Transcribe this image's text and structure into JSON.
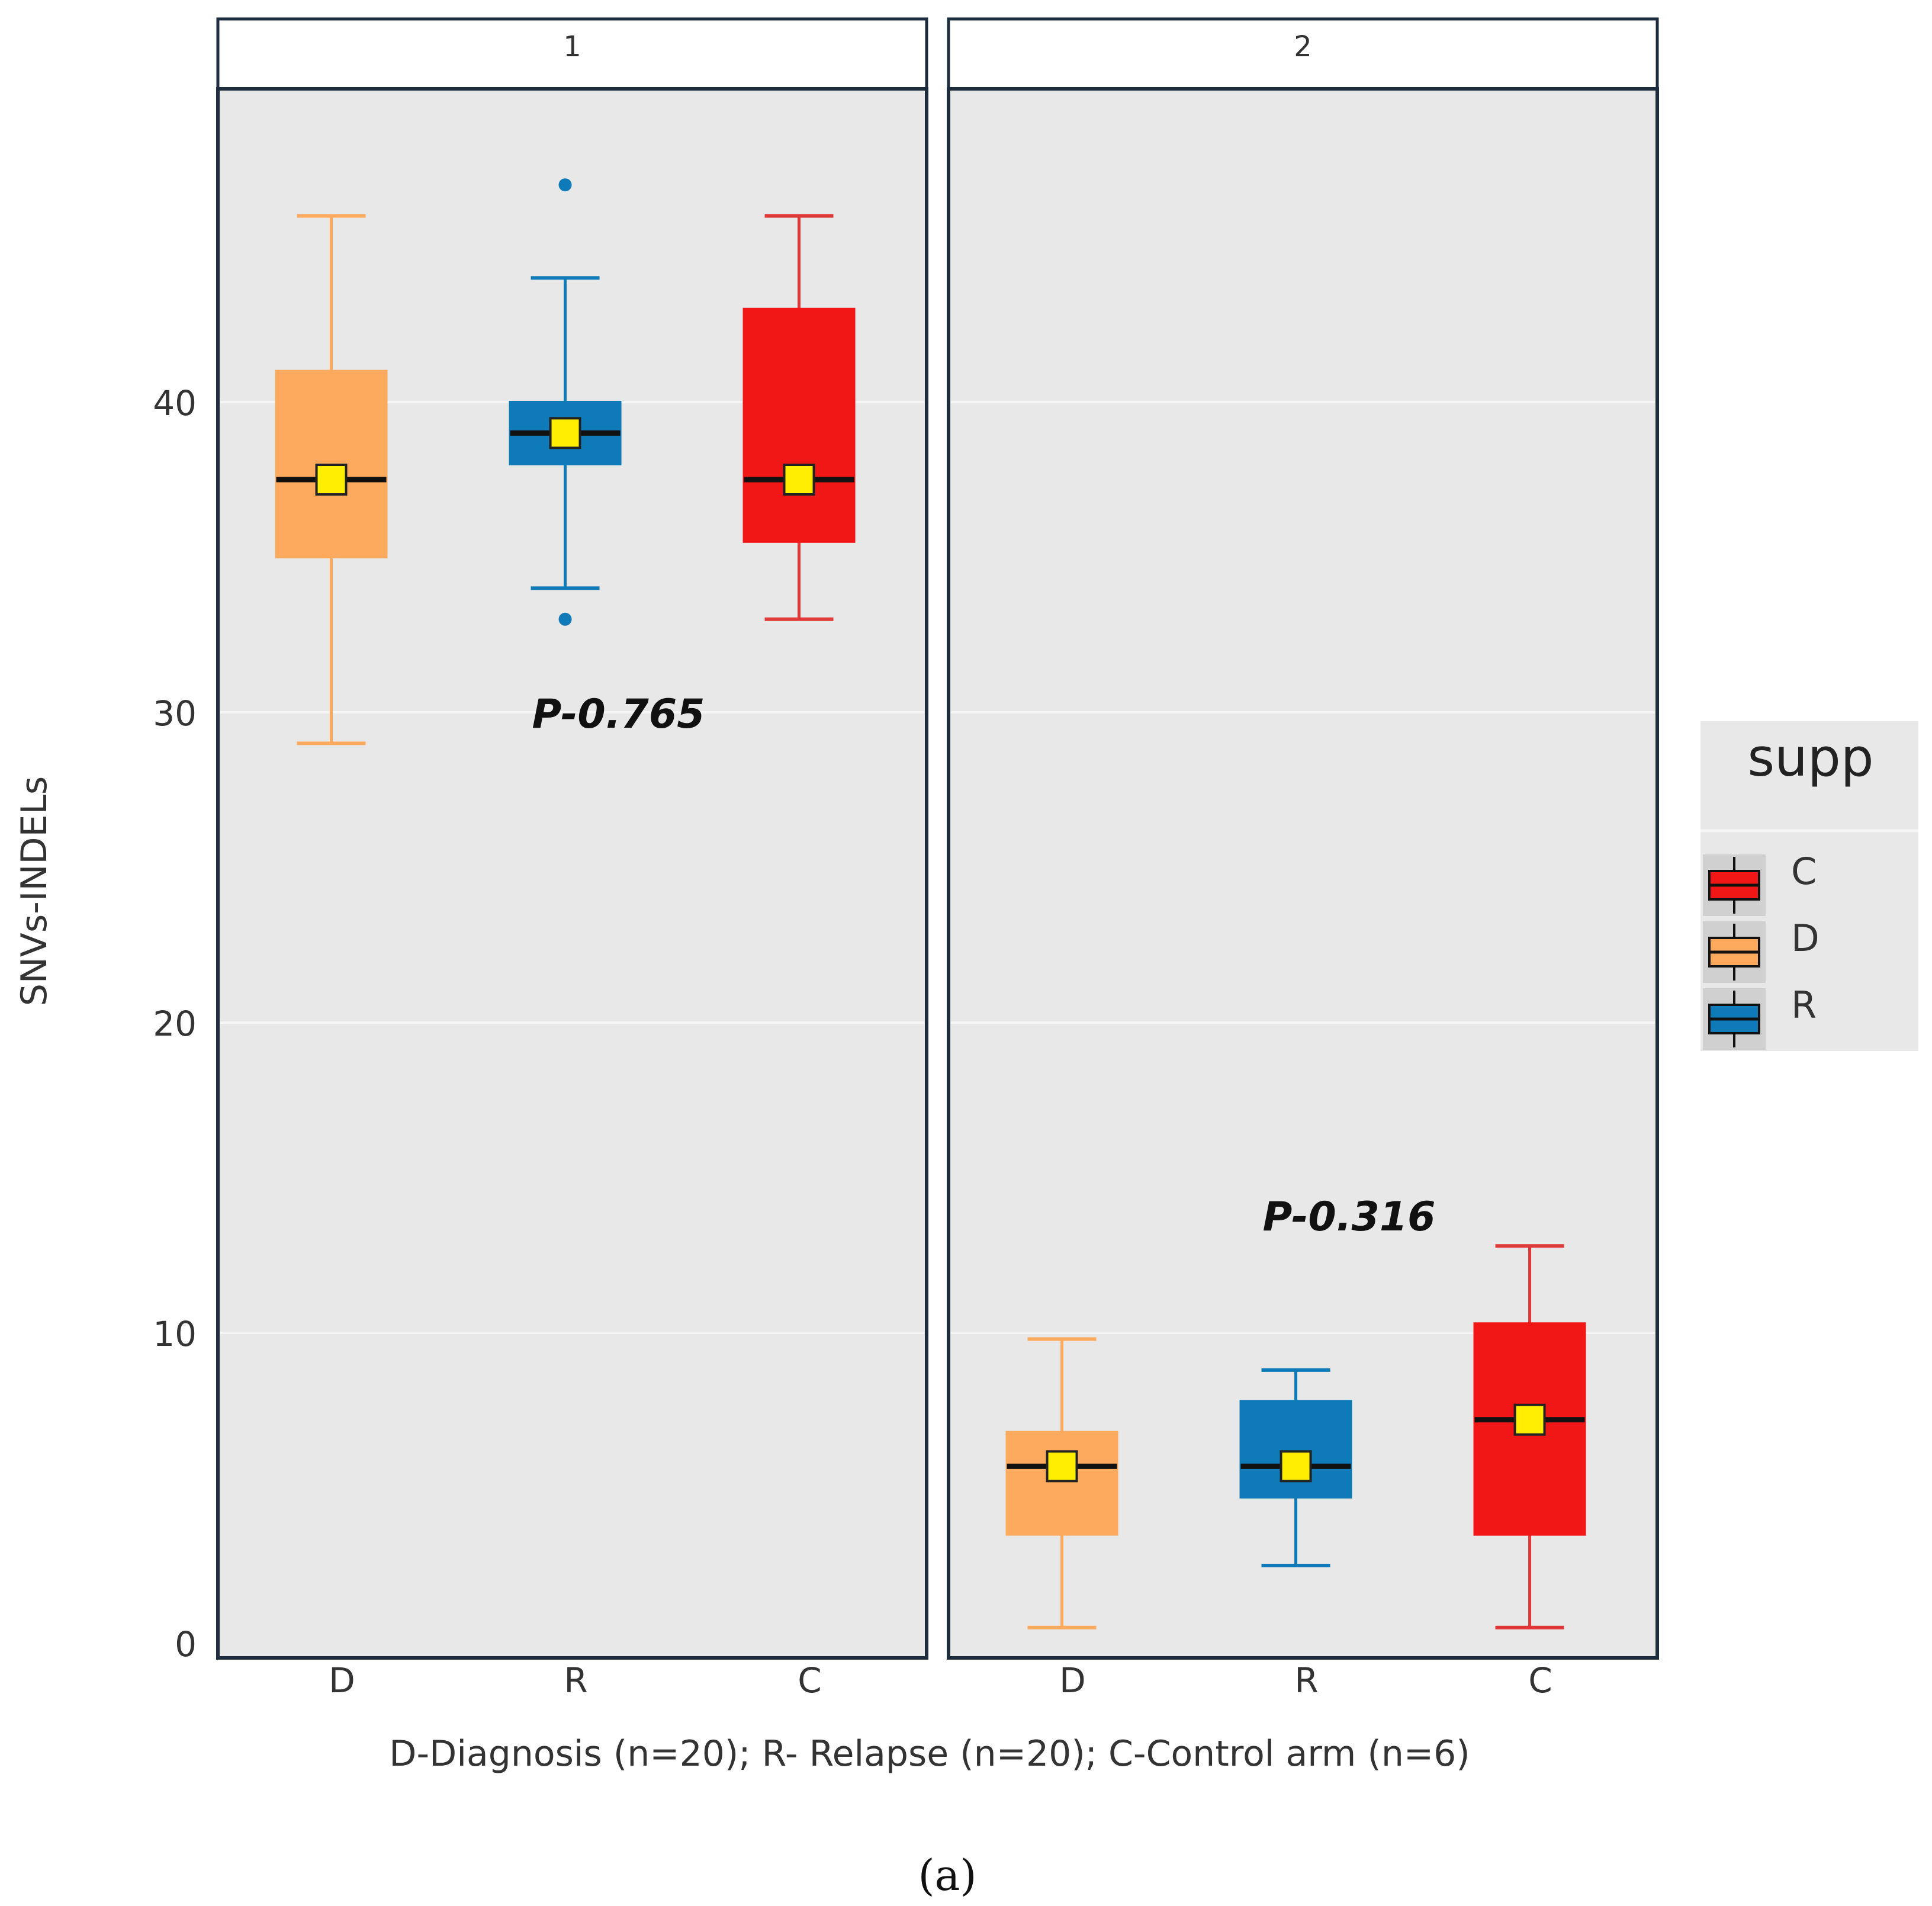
{
  "chart_data": {
    "type": "boxplot",
    "ylabel": "SNVs-INDELs",
    "xlabel": "D-Diagnosis (n=20); R- Relapse (n=20); C-Control arm (n=6)",
    "ylim": [
      0,
      50
    ],
    "yticks": [
      0,
      10,
      20,
      30,
      40
    ],
    "ytick_labels": [
      "0",
      "10",
      "20",
      "30",
      "40"
    ],
    "categories": [
      "D",
      "R",
      "C"
    ],
    "caption": "(a)",
    "legend": {
      "title": "supp",
      "entries": [
        {
          "label": "C",
          "color": "#f21717"
        },
        {
          "label": "D",
          "color": "#fdaa5f"
        },
        {
          "label": "R",
          "color": "#0e7ab8"
        }
      ]
    },
    "colors": {
      "D": "#fdaa5f",
      "R": "#0e7ab8",
      "C": "#f21717"
    },
    "whisker_colors": {
      "D": "#fdaa5f",
      "R": "#0e7ab8",
      "C": "#e03838"
    },
    "mean_color": "#ffee00",
    "panels": [
      {
        "strip": "1",
        "p_label": "P-0.765",
        "p_position": {
          "category": "R",
          "y": 29.5
        },
        "boxes": [
          {
            "group": "D",
            "whisker_low": 29,
            "q1": 35,
            "median": 37.5,
            "q3": 41,
            "whisker_high": 46,
            "mean": 37.5,
            "outliers": []
          },
          {
            "group": "R",
            "whisker_low": 34,
            "q1": 38,
            "median": 39,
            "q3": 40,
            "whisker_high": 44,
            "mean": 39,
            "outliers": [
              47,
              33
            ]
          },
          {
            "group": "C",
            "whisker_low": 33,
            "q1": 35.5,
            "median": 37.5,
            "q3": 43,
            "whisker_high": 46,
            "mean": 37.5,
            "outliers": []
          }
        ]
      },
      {
        "strip": "2",
        "p_label": "P-0.316",
        "p_position": {
          "category": "R",
          "y": 13.3
        },
        "boxes": [
          {
            "group": "D",
            "whisker_low": 0.5,
            "q1": 3.5,
            "median": 5.7,
            "q3": 6.8,
            "whisker_high": 9.8,
            "mean": 5.7,
            "outliers": []
          },
          {
            "group": "R",
            "whisker_low": 2.5,
            "q1": 4.7,
            "median": 5.7,
            "q3": 7.8,
            "whisker_high": 8.8,
            "mean": 5.7,
            "outliers": []
          },
          {
            "group": "C",
            "whisker_low": 0.5,
            "q1": 3.5,
            "median": 7.2,
            "q3": 10.3,
            "whisker_high": 12.8,
            "mean": 7.2,
            "outliers": []
          }
        ]
      }
    ]
  }
}
